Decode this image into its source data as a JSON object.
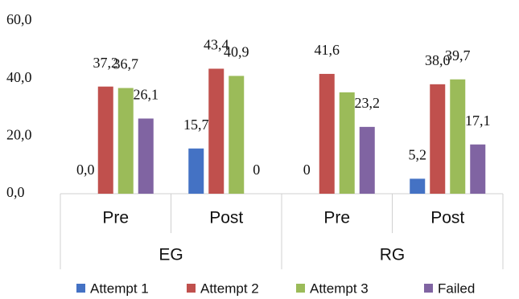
{
  "chart_data": {
    "type": "bar",
    "categories": [
      "Pre",
      "Post",
      "Pre",
      "Post"
    ],
    "groups": [
      "EG",
      "RG"
    ],
    "series": [
      {
        "name": "Attempt 1",
        "color": "#4472c4",
        "values": [
          0,
          15.7,
          0,
          5.2
        ],
        "value_labels": [
          "0,0",
          "15,7",
          "0",
          "5,2"
        ]
      },
      {
        "name": "Attempt 2",
        "color": "#c0504d",
        "values": [
          37.2,
          43.4,
          41.6,
          38.0
        ],
        "value_labels": [
          "37,2",
          "43,4",
          "41,6",
          "38,0"
        ]
      },
      {
        "name": "Attempt 3",
        "color": "#9bbb59",
        "values": [
          36.7,
          40.9,
          35.2,
          39.7
        ],
        "value_labels": [
          "36,7",
          "40,9",
          null,
          "39,7"
        ]
      },
      {
        "name": "Failed",
        "color": "#8064a2",
        "values": [
          26.1,
          0,
          23.2,
          17.1
        ],
        "value_labels": [
          "26,1",
          "0",
          "23,2",
          "17,1"
        ]
      }
    ],
    "ylim": [
      0,
      60
    ],
    "yticks": [
      {
        "value": 0,
        "label": "0,0"
      },
      {
        "value": 20,
        "label": "20,0"
      },
      {
        "value": 40,
        "label": "40,0"
      },
      {
        "value": 60,
        "label": "60,0"
      }
    ],
    "legend": "bottom"
  }
}
